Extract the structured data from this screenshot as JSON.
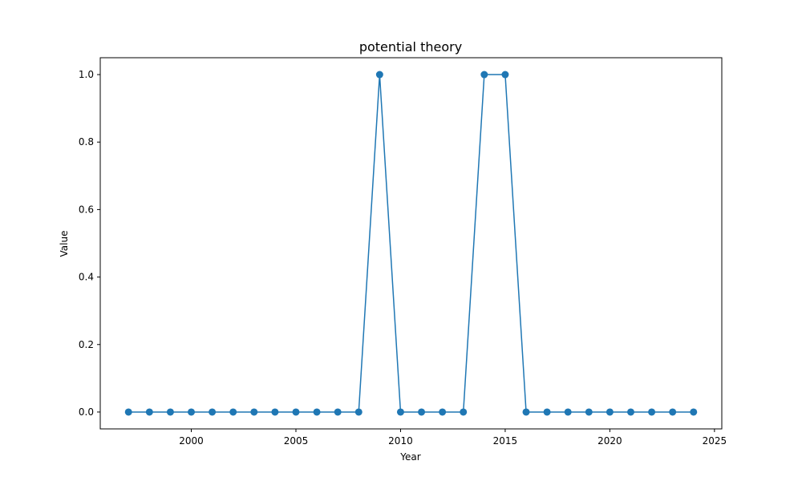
{
  "chart_data": {
    "type": "line",
    "title": "potential theory",
    "xlabel": "Year",
    "ylabel": "Value",
    "xlim": [
      1995.65,
      2025.35
    ],
    "ylim": [
      -0.05,
      1.05
    ],
    "xticks": [
      2000,
      2005,
      2010,
      2015,
      2020,
      2025
    ],
    "xtick_labels": [
      "2000",
      "2005",
      "2010",
      "2015",
      "2020",
      "2025"
    ],
    "yticks": [
      0.0,
      0.2,
      0.4,
      0.6,
      0.8,
      1.0
    ],
    "ytick_labels": [
      "0.0",
      "0.2",
      "0.4",
      "0.6",
      "0.8",
      "1.0"
    ],
    "grid": false,
    "series": [
      {
        "color": "#1f77b4",
        "marker": "circle",
        "x": [
          1997,
          1998,
          1999,
          2000,
          2001,
          2002,
          2003,
          2004,
          2005,
          2006,
          2007,
          2008,
          2009,
          2010,
          2011,
          2012,
          2013,
          2014,
          2015,
          2016,
          2017,
          2018,
          2019,
          2020,
          2021,
          2022,
          2023,
          2024
        ],
        "y": [
          0,
          0,
          0,
          0,
          0,
          0,
          0,
          0,
          0,
          0,
          0,
          0,
          1,
          0,
          0,
          0,
          0,
          1,
          1,
          0,
          0,
          0,
          0,
          0,
          0,
          0,
          0,
          0
        ]
      }
    ]
  }
}
